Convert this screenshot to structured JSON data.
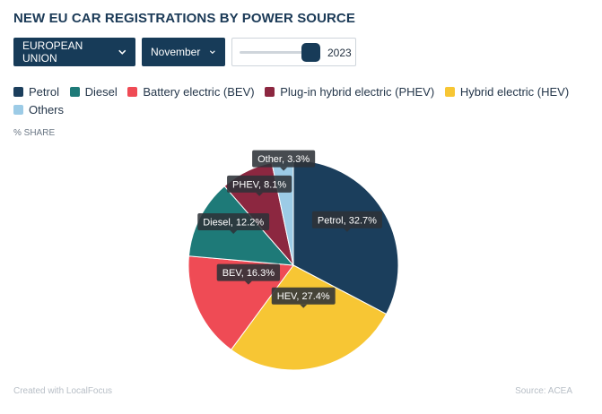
{
  "title": "NEW EU CAR REGISTRATIONS BY POWER SOURCE",
  "controls": {
    "region": "EUROPEAN UNION",
    "month": "November",
    "year": "2023"
  },
  "unit_label": "% SHARE",
  "footer": {
    "credit": "Created with LocalFocus",
    "source": "Source: ACEA"
  },
  "colors": {
    "petrol": "#1b3e5c",
    "diesel": "#1e7a78",
    "bev": "#ef4b55",
    "phev": "#8c2740",
    "hev": "#f7c634",
    "others": "#9ccbe6"
  },
  "chart_data": {
    "type": "pie",
    "legend": [
      {
        "name": "Petrol",
        "color": "#1b3e5c"
      },
      {
        "name": "Diesel",
        "color": "#1e7a78"
      },
      {
        "name": "Battery electric (BEV)",
        "color": "#ef4b55"
      },
      {
        "name": "Plug-in hybrid electric (PHEV)",
        "color": "#8c2740"
      },
      {
        "name": "Hybrid electric (HEV)",
        "color": "#f7c634"
      },
      {
        "name": "Others",
        "color": "#9ccbe6"
      }
    ],
    "slices": [
      {
        "label": "Petrol, 32.7%",
        "value": 32.7,
        "color": "#1b3e5c"
      },
      {
        "label": "HEV, 27.4%",
        "value": 27.4,
        "color": "#f7c634"
      },
      {
        "label": "BEV, 16.3%",
        "value": 16.3,
        "color": "#ef4b55"
      },
      {
        "label": "Diesel, 12.2%",
        "value": 12.2,
        "color": "#1e7a78"
      },
      {
        "label": "PHEV, 8.1%",
        "value": 8.1,
        "color": "#8c2740"
      },
      {
        "label": "Other, 3.3%",
        "value": 3.3,
        "color": "#9ccbe6"
      }
    ]
  }
}
